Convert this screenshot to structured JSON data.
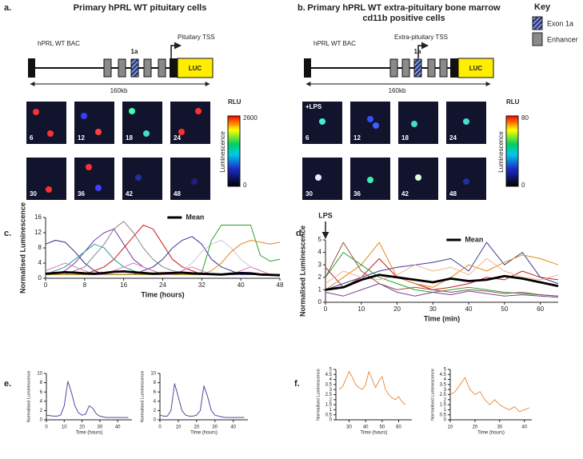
{
  "panels": [
    {
      "label": "a.",
      "title_lines": [
        "Primary hPRL WT pituitary cells"
      ],
      "construct": "hPRL WT BAC",
      "exon": "1a",
      "tss": "Pituitary TSS",
      "reporter": "LUC",
      "length": "160kb",
      "frames": [
        "6",
        "12",
        "18",
        "24",
        "30",
        "36",
        "42",
        "48"
      ],
      "colorbar": {
        "title": "RLU",
        "label": "Luminescence",
        "ticks": [
          2600,
          0
        ]
      }
    },
    {
      "label": "b.",
      "title_lines": [
        "Primary hPRL WT extra-pituitary bone marrow",
        "cd11b positive cells"
      ],
      "construct": "hPRL WT BAC",
      "exon": "1a",
      "tss": "Extra-pituitary TSS",
      "reporter": "LUC",
      "length": "160kb",
      "frame_note": "+LPS",
      "frames": [
        "6",
        "12",
        "18",
        "24",
        "30",
        "36",
        "42",
        "48"
      ],
      "colorbar": {
        "title": "RLU",
        "label": "Luminescence",
        "ticks": [
          80,
          0
        ]
      }
    }
  ],
  "key": {
    "title": "Key",
    "items": [
      "Exon 1a",
      "Enhancer"
    ]
  },
  "chart_data": [
    {
      "type": "line",
      "panel": "c.",
      "xlabel": "Time (hours)",
      "ylabel": "Normalised Luminescence",
      "xlim": [
        0,
        48
      ],
      "xticks": [
        0,
        8,
        16,
        24,
        32,
        40,
        48
      ],
      "ylim": [
        0,
        16
      ],
      "yticks": [
        0,
        4,
        8,
        12,
        16
      ],
      "x": [
        0,
        2,
        4,
        6,
        8,
        10,
        12,
        14,
        16,
        18,
        20,
        22,
        24,
        26,
        28,
        30,
        32,
        34,
        36,
        38,
        40,
        42,
        44,
        46,
        48
      ],
      "series": [
        {
          "color": "#2b2b8c",
          "values": [
            9,
            10,
            9.5,
            7,
            4,
            2,
            1,
            1,
            1,
            1,
            1,
            1,
            1,
            1,
            1,
            1,
            1,
            1,
            1,
            1,
            1,
            1,
            1,
            1,
            1
          ]
        },
        {
          "color": "#8a8a8a",
          "values": [
            1,
            1,
            1,
            2,
            3,
            6,
            9,
            13,
            15,
            12,
            8,
            5,
            3,
            2,
            1.5,
            1,
            1,
            1,
            1,
            1,
            1,
            1,
            1,
            1,
            1
          ]
        },
        {
          "color": "#d01c1c",
          "values": [
            1,
            1,
            1,
            1,
            1,
            2,
            3,
            5,
            8,
            11,
            14,
            13,
            9,
            5,
            3,
            2,
            1,
            1,
            1,
            1,
            1,
            1,
            1,
            1,
            1
          ]
        },
        {
          "color": "#7b3fa0",
          "values": [
            1,
            1,
            2,
            4,
            7,
            10,
            12,
            13,
            9,
            5,
            3,
            2,
            1,
            1,
            1,
            1,
            1,
            1,
            1,
            1,
            1,
            1,
            1,
            1,
            1
          ]
        },
        {
          "color": "#2aa198",
          "values": [
            1,
            2,
            3,
            5,
            7,
            9,
            8,
            5,
            3,
            2,
            1,
            1,
            1,
            1,
            1,
            1,
            1,
            1,
            1,
            1,
            1,
            1,
            1,
            1,
            1
          ]
        },
        {
          "color": "#3a3a9a",
          "values": [
            1,
            1,
            1,
            1,
            1,
            1,
            1,
            1,
            1,
            1,
            2,
            3,
            5,
            8,
            10,
            11,
            9,
            5,
            3,
            2,
            1,
            1,
            1,
            1,
            1
          ]
        },
        {
          "color": "#c8c8d8",
          "values": [
            1,
            1,
            1,
            1,
            1,
            1,
            1,
            1,
            1,
            1,
            1,
            1,
            1,
            1,
            2,
            4,
            7,
            9,
            10,
            8,
            5,
            3,
            2,
            1,
            1
          ]
        },
        {
          "color": "#2ca02c",
          "values": [
            1,
            1,
            1,
            1,
            1,
            1,
            1,
            1,
            1,
            1,
            1,
            1,
            1,
            1,
            1,
            1,
            1.5,
            10,
            14,
            14,
            14,
            14,
            6,
            4.5,
            5
          ]
        },
        {
          "color": "#e08a1e",
          "values": [
            1,
            1,
            1,
            1,
            1,
            1,
            1,
            1,
            1,
            1,
            1,
            1,
            1,
            1,
            1,
            1,
            1,
            2,
            4,
            7,
            9,
            10,
            9.5,
            9,
            9.5
          ]
        },
        {
          "color": "#e377c2",
          "values": [
            2,
            3,
            4,
            3,
            2,
            1,
            1,
            2,
            3,
            4,
            3,
            2,
            1,
            1,
            2,
            3,
            2,
            1,
            1,
            1,
            2,
            3,
            2,
            1,
            1
          ]
        },
        {
          "name": "Mean",
          "color": "#000000",
          "values": [
            1.2,
            1.4,
            1.6,
            1.5,
            1.3,
            1.2,
            1.4,
            1.7,
            1.8,
            1.6,
            1.4,
            1.2,
            1.3,
            1.4,
            1.5,
            1.3,
            1.2,
            1.1,
            1,
            1.2,
            1.4,
            1.3,
            1,
            0.9,
            0.8
          ]
        }
      ]
    },
    {
      "type": "line",
      "panel": "d.",
      "xlabel": "Time (min)",
      "ylabel": "Normalised Luminescence",
      "annotation": {
        "text": "LPS",
        "x": 0
      },
      "xlim": [
        0,
        65
      ],
      "xticks": [
        0,
        10,
        20,
        30,
        40,
        50,
        60
      ],
      "ylim": [
        0,
        5
      ],
      "yticks": [
        0,
        1,
        2,
        3,
        4,
        5
      ],
      "x": [
        0,
        5,
        10,
        15,
        20,
        25,
        30,
        35,
        40,
        45,
        50,
        55,
        60,
        65
      ],
      "series": [
        {
          "color": "#d01c1c",
          "values": [
            2.8,
            1.2,
            2,
            3.5,
            2,
            1.5,
            1,
            1.2,
            1.5,
            2,
            1.8,
            2.5,
            2,
            1.8
          ]
        },
        {
          "color": "#3a3a9a",
          "values": [
            1,
            1.5,
            2,
            2.5,
            2.8,
            3,
            3.2,
            3.5,
            2.5,
            4.8,
            3,
            4,
            2,
            1.5
          ]
        },
        {
          "color": "#e08a1e",
          "values": [
            1,
            2,
            3,
            4.8,
            2,
            1.5,
            1.2,
            2,
            3,
            2.5,
            3.2,
            3.8,
            3.5,
            3
          ]
        },
        {
          "color": "#2ca02c",
          "values": [
            2,
            4,
            3,
            2,
            1.5,
            1,
            0.8,
            1,
            1.2,
            1,
            0.8,
            0.7,
            0.6,
            0.5
          ]
        },
        {
          "color": "#7b3fa0",
          "values": [
            0.8,
            0.5,
            1,
            1.5,
            0.8,
            0.5,
            0.8,
            0.6,
            0.9,
            0.7,
            0.5,
            0.6,
            0.5,
            0.4
          ]
        },
        {
          "color": "#f2b48a",
          "values": [
            1.5,
            2.5,
            2,
            1.8,
            2.2,
            3,
            2.5,
            2.8,
            2.2,
            3.5,
            2.5,
            2,
            1.8,
            2.2
          ]
        },
        {
          "color": "#8c564b",
          "values": [
            2,
            4.8,
            2.5,
            1.5,
            1,
            1.2,
            1,
            0.8,
            1,
            0.9,
            0.7,
            0.8,
            0.6,
            0.5
          ]
        },
        {
          "name": "Mean",
          "color": "#000000",
          "values": [
            1,
            1.2,
            1.8,
            2.2,
            2,
            1.8,
            1.6,
            1.9,
            1.7,
            1.8,
            2.1,
            1.9,
            1.6,
            1.3
          ]
        }
      ]
    },
    {
      "type": "line",
      "panel": "e.",
      "xlabel": "Time (hours)",
      "ylabel": "Normalised Luminescence",
      "xlim": [
        0,
        48
      ],
      "xticks": [
        0,
        10,
        20,
        30,
        40
      ],
      "ylim": [
        0,
        10
      ],
      "yticks": [
        0,
        2,
        4,
        6,
        8,
        10
      ],
      "x": [
        0,
        2,
        4,
        6,
        8,
        10,
        12,
        14,
        16,
        18,
        20,
        22,
        24,
        26,
        28,
        30,
        32,
        34,
        36,
        38,
        40,
        42,
        44,
        46
      ],
      "series": [
        {
          "color": "#4b4ba0",
          "values": [
            1,
            0.9,
            0.8,
            0.8,
            1,
            3,
            8.3,
            6,
            3,
            1.5,
            1,
            1.2,
            3,
            2.5,
            1.3,
            0.8,
            0.6,
            0.5,
            0.5,
            0.5,
            0.5,
            0.5,
            0.5,
            0.5
          ]
        }
      ]
    },
    {
      "type": "line",
      "xlabel": "Time (hours)",
      "ylabel": "Normalised Luminescence",
      "xlim": [
        0,
        48
      ],
      "xticks": [
        0,
        10,
        20,
        30,
        40
      ],
      "ylim": [
        0,
        10
      ],
      "yticks": [
        0,
        2,
        4,
        6,
        8,
        10
      ],
      "x": [
        0,
        2,
        4,
        6,
        8,
        10,
        12,
        14,
        16,
        18,
        20,
        22,
        24,
        26,
        28,
        30,
        32,
        34,
        36,
        38,
        40,
        42,
        44,
        46
      ],
      "series": [
        {
          "color": "#4b4ba0",
          "values": [
            1,
            0.8,
            0.8,
            2,
            7.8,
            5,
            2,
            1,
            0.8,
            0.8,
            1,
            2,
            7.3,
            5,
            2,
            1,
            0.8,
            0.6,
            0.5,
            0.5,
            0.5,
            0.5,
            0.5,
            0.5
          ]
        }
      ]
    },
    {
      "type": "line",
      "panel": "f.",
      "xlabel": "Time (hours)",
      "ylabel": "Normalised Luminescence",
      "xlim": [
        22,
        68
      ],
      "xticks": [
        30,
        40,
        50,
        60
      ],
      "ylim": [
        0,
        5
      ],
      "yticks": [
        0,
        0.5,
        1,
        1.5,
        2,
        2.5,
        3,
        3.5,
        4,
        4.5,
        5
      ],
      "x": [
        24,
        26,
        28,
        30,
        32,
        34,
        36,
        38,
        40,
        42,
        44,
        46,
        48,
        50,
        52,
        54,
        56,
        58,
        60,
        62,
        64
      ],
      "series": [
        {
          "color": "#e07a20",
          "values": [
            3,
            3.3,
            4,
            4.8,
            4.2,
            3.5,
            3.2,
            3,
            3.5,
            4.8,
            4,
            3.2,
            3.8,
            4.3,
            3,
            2.5,
            2.2,
            2,
            2.3,
            1.8,
            1.5
          ]
        }
      ]
    },
    {
      "type": "line",
      "xlabel": "Time (hours)",
      "ylabel": "Normalised Luminescence",
      "xlim": [
        10,
        43
      ],
      "xticks": [
        10,
        20,
        30,
        40
      ],
      "ylim": [
        0,
        5
      ],
      "yticks": [
        0,
        0.5,
        1,
        1.5,
        2,
        2.5,
        3,
        3.5,
        4,
        4.5,
        5
      ],
      "x": [
        10,
        12,
        14,
        16,
        18,
        20,
        22,
        24,
        26,
        28,
        30,
        32,
        34,
        36,
        38,
        40,
        42
      ],
      "series": [
        {
          "color": "#e07a20",
          "values": [
            2.5,
            2.8,
            3.5,
            4.2,
            3,
            2.5,
            2.8,
            2,
            1.5,
            2,
            1.5,
            1.2,
            1,
            1.3,
            0.8,
            1,
            1.2
          ]
        }
      ]
    }
  ]
}
